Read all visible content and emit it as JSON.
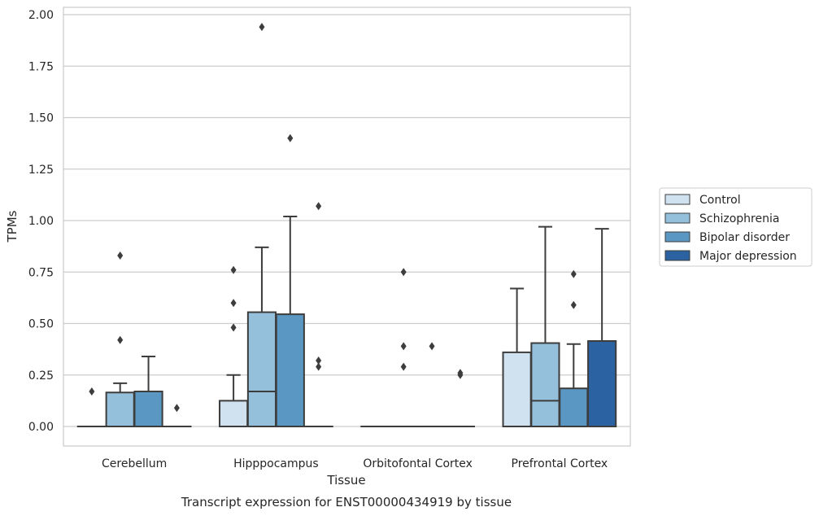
{
  "chart_data": {
    "type": "box",
    "caption": "Transcript expression for ENST00000434919 by tissue",
    "xlabel": "Tissue",
    "ylabel": "TPMs",
    "ylim": [
      -0.095,
      2.04
    ],
    "yticks": [
      0.0,
      0.25,
      0.5,
      0.75,
      1.0,
      1.25,
      1.5,
      1.75,
      2.0
    ],
    "ytick_labels": [
      "0.00",
      "0.25",
      "0.50",
      "0.75",
      "1.00",
      "1.25",
      "1.50",
      "1.75",
      "2.00"
    ],
    "grid": "horizontal",
    "legend_position": "right",
    "categories": [
      "Cerebellum",
      "Hipppocampus",
      "Orbitofontal Cortex",
      "Prefrontal Cortex"
    ],
    "series": [
      {
        "name": "Control",
        "color": "#d0e1f0",
        "boxes": [
          {
            "min": 0,
            "q1": 0,
            "median": 0,
            "q3": 0,
            "max": 0,
            "outliers": [
              0.17
            ]
          },
          {
            "min": 0,
            "q1": 0,
            "median": 0,
            "q3": 0.125,
            "max": 0.25,
            "outliers": [
              0.48,
              0.6,
              0.76
            ]
          },
          {
            "min": 0,
            "q1": 0,
            "median": 0,
            "q3": 0,
            "max": 0,
            "outliers": []
          },
          {
            "min": 0,
            "q1": 0,
            "median": 0,
            "q3": 0.36,
            "max": 0.67,
            "outliers": []
          }
        ]
      },
      {
        "name": "Schizophrenia",
        "color": "#94c0dc",
        "boxes": [
          {
            "min": 0,
            "q1": 0,
            "median": 0,
            "q3": 0.165,
            "max": 0.21,
            "outliers": [
              0.42,
              0.83
            ]
          },
          {
            "min": 0,
            "q1": 0,
            "median": 0.17,
            "q3": 0.555,
            "max": 0.87,
            "outliers": [
              1.94
            ]
          },
          {
            "min": 0,
            "q1": 0,
            "median": 0,
            "q3": 0,
            "max": 0,
            "outliers": [
              0.29,
              0.39,
              0.75
            ]
          },
          {
            "min": 0,
            "q1": 0,
            "median": 0.125,
            "q3": 0.405,
            "max": 0.97,
            "outliers": []
          }
        ]
      },
      {
        "name": "Bipolar disorder",
        "color": "#5a97c2",
        "boxes": [
          {
            "min": 0,
            "q1": 0,
            "median": 0,
            "q3": 0.17,
            "max": 0.34,
            "outliers": []
          },
          {
            "min": 0,
            "q1": 0,
            "median": 0,
            "q3": 0.545,
            "max": 1.02,
            "outliers": [
              1.4
            ]
          },
          {
            "min": 0,
            "q1": 0,
            "median": 0,
            "q3": 0,
            "max": 0,
            "outliers": [
              0.39
            ]
          },
          {
            "min": 0,
            "q1": 0,
            "median": 0,
            "q3": 0.185,
            "max": 0.4,
            "outliers": [
              0.59,
              0.74
            ]
          }
        ]
      },
      {
        "name": "Major depression",
        "color": "#2b62a1",
        "boxes": [
          {
            "min": 0,
            "q1": 0,
            "median": 0,
            "q3": 0,
            "max": 0,
            "outliers": [
              0.09
            ]
          },
          {
            "min": 0,
            "q1": 0,
            "median": 0,
            "q3": 0,
            "max": 0,
            "outliers": [
              0.29,
              0.32,
              1.07
            ]
          },
          {
            "min": 0,
            "q1": 0,
            "median": 0,
            "q3": 0,
            "max": 0,
            "outliers": [
              0.25,
              0.26
            ]
          },
          {
            "min": 0,
            "q1": 0,
            "median": 0,
            "q3": 0.415,
            "max": 0.96,
            "outliers": []
          }
        ]
      }
    ]
  }
}
